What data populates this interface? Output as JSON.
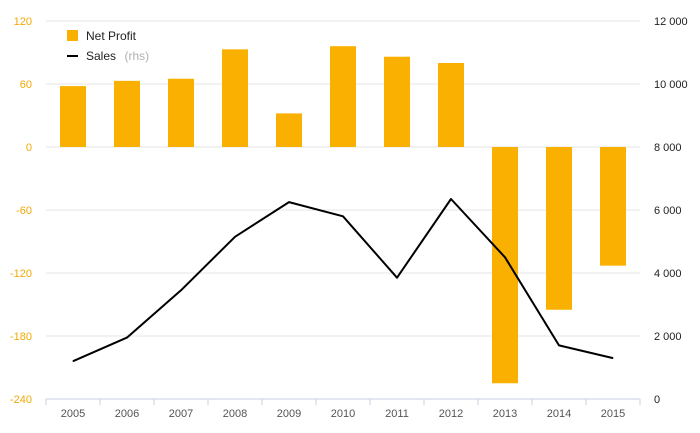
{
  "chart_data": {
    "type": "bar",
    "categories": [
      "2005",
      "2006",
      "2007",
      "2008",
      "2009",
      "2010",
      "2011",
      "2012",
      "2013",
      "2014",
      "2015"
    ],
    "series": [
      {
        "name": "Net Profit",
        "type": "bar",
        "axis": "left",
        "color": "#f9b000",
        "values": [
          58,
          63,
          65,
          93,
          32,
          96,
          86,
          80,
          -225,
          -155,
          -113
        ]
      },
      {
        "name": "Sales",
        "name_suffix": "(rhs)",
        "type": "line",
        "axis": "right",
        "color": "#000000",
        "values": [
          1200,
          1950,
          3450,
          5150,
          6250,
          5800,
          3850,
          6350,
          4500,
          1700,
          1300
        ]
      }
    ],
    "left_axis": {
      "ylim": [
        -240,
        120
      ],
      "ticks": [
        "120",
        "60",
        "0",
        "-60",
        "-120",
        "-180",
        "-240"
      ],
      "tick_values": [
        120,
        60,
        0,
        -60,
        -120,
        -180,
        -240
      ],
      "color": "#f2a900"
    },
    "right_axis": {
      "ylim": [
        0,
        12000
      ],
      "ticks": [
        "12 000",
        "10 000",
        "8 000",
        "6 000",
        "4 000",
        "2 000",
        "0"
      ],
      "tick_values": [
        12000,
        10000,
        8000,
        6000,
        4000,
        2000,
        0
      ]
    },
    "grid": true,
    "legend_position": "top-left"
  }
}
